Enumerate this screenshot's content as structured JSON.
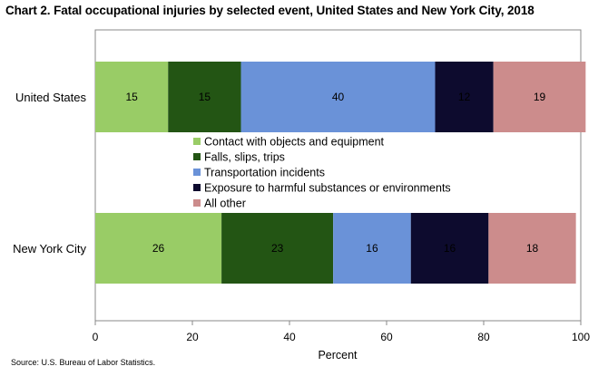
{
  "title": "Chart 2. Fatal occupational injuries by selected event, United States and New York City, 2018",
  "source": "Source: U.S. Bureau of Labor Statistics.",
  "chart_data": {
    "type": "bar",
    "orientation": "horizontal",
    "stacked": true,
    "categories": [
      "United States",
      "New York City"
    ],
    "series": [
      {
        "name": "Contact with objects and equipment",
        "values": [
          15,
          26
        ],
        "color": "#99cc66"
      },
      {
        "name": "Falls, slips, trips",
        "values": [
          15,
          23
        ],
        "color": "#235514"
      },
      {
        "name": "Transportation incidents",
        "values": [
          40,
          16
        ],
        "color": "#6a92d8"
      },
      {
        "name": "Exposure to harmful substances or environments",
        "values": [
          12,
          16
        ],
        "color": "#0d0b2e"
      },
      {
        "name": "All other",
        "values": [
          19,
          18
        ],
        "color": "#cc8c8c"
      }
    ],
    "xlabel": "Percent",
    "xlim": [
      0,
      100
    ],
    "xticks": [
      0,
      20,
      40,
      60,
      80,
      100
    ],
    "legend": "center",
    "grid": false
  }
}
